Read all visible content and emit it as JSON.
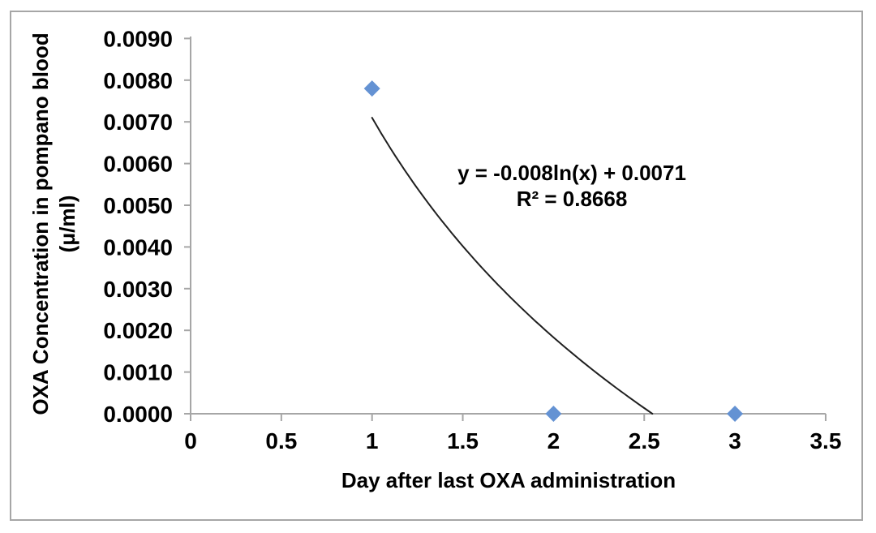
{
  "chart_data": {
    "type": "scatter",
    "title": "",
    "xlabel": "Day after last OXA administration",
    "ylabel": "OXA Concentration in pompano blood (μ/ml)",
    "ylabel_lines": [
      "OXA Concentration in pompano blood",
      "(μ/ml)"
    ],
    "xlim": [
      0,
      3.5
    ],
    "ylim": [
      0,
      0.009
    ],
    "grid": false,
    "legend": null,
    "points": [
      {
        "x": 1,
        "y": 0.0078
      },
      {
        "x": 2,
        "y": 0.0
      },
      {
        "x": 3,
        "y": 0.0
      }
    ],
    "x_ticks": [
      {
        "v": 0,
        "label": "0"
      },
      {
        "v": 0.5,
        "label": "0.5"
      },
      {
        "v": 1,
        "label": "1"
      },
      {
        "v": 1.5,
        "label": "1.5"
      },
      {
        "v": 2,
        "label": "2"
      },
      {
        "v": 2.5,
        "label": "2.5"
      },
      {
        "v": 3,
        "label": "3"
      },
      {
        "v": 3.5,
        "label": "3.5"
      }
    ],
    "y_ticks": [
      {
        "v": 0.0,
        "label": "0.0000"
      },
      {
        "v": 0.001,
        "label": "0.0010"
      },
      {
        "v": 0.002,
        "label": "0.0020"
      },
      {
        "v": 0.003,
        "label": "0.0030"
      },
      {
        "v": 0.004,
        "label": "0.0040"
      },
      {
        "v": 0.005,
        "label": "0.0050"
      },
      {
        "v": 0.006,
        "label": "0.0060"
      },
      {
        "v": 0.007,
        "label": "0.0070"
      },
      {
        "v": 0.008,
        "label": "0.0080"
      },
      {
        "v": 0.009,
        "label": "0.0090"
      }
    ],
    "trendline": {
      "type": "logarithmic",
      "equation_label": "y = -0.008ln(x) + 0.0071",
      "r2_label": "R² = 0.8668",
      "a": -0.0076,
      "b": 0.0071,
      "x_start": 1,
      "x_end": 2.545
    },
    "marker": {
      "shape": "diamond",
      "color": "#6492D3"
    },
    "colors": {
      "axis": "#A6A6A6",
      "frame": "#A6A6A6",
      "text": "#000000",
      "trendline": "#1F1F1F"
    }
  }
}
